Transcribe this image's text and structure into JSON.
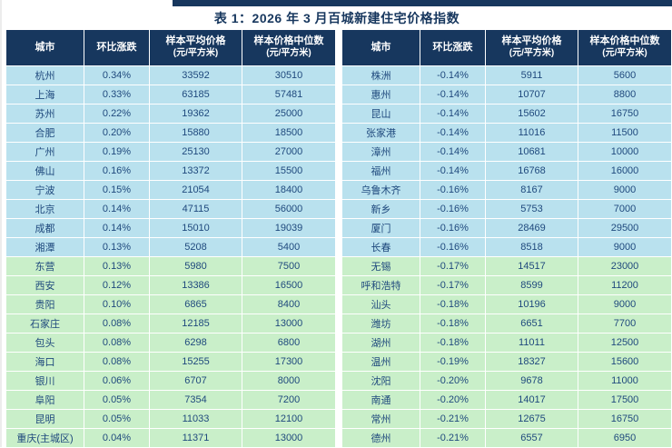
{
  "title": "表 1：2026 年 3 月百城新建住宅价格指数",
  "colors": {
    "header_bg": "#17375E",
    "header_text": "#FFFFFF",
    "row_blue": "#B9E1EE",
    "row_green": "#C9EFC9",
    "cell_text": "#1F497D",
    "title_text": "#17375E"
  },
  "columns": [
    {
      "label": "城市",
      "sub": ""
    },
    {
      "label": "环比涨跌",
      "sub": ""
    },
    {
      "label": "样本平均价格",
      "sub": "(元/平方米)"
    },
    {
      "label": "样本价格中位数",
      "sub": "(元/平方米)"
    }
  ],
  "left_table": {
    "rows": [
      {
        "city": "杭州",
        "change": "0.34%",
        "avg": "33592",
        "median": "30510",
        "group": "blue"
      },
      {
        "city": "上海",
        "change": "0.33%",
        "avg": "63185",
        "median": "57481",
        "group": "blue"
      },
      {
        "city": "苏州",
        "change": "0.22%",
        "avg": "19362",
        "median": "25000",
        "group": "blue"
      },
      {
        "city": "合肥",
        "change": "0.20%",
        "avg": "15880",
        "median": "18500",
        "group": "blue"
      },
      {
        "city": "广州",
        "change": "0.19%",
        "avg": "25130",
        "median": "27000",
        "group": "blue"
      },
      {
        "city": "佛山",
        "change": "0.16%",
        "avg": "13372",
        "median": "15500",
        "group": "blue"
      },
      {
        "city": "宁波",
        "change": "0.15%",
        "avg": "21054",
        "median": "18400",
        "group": "blue"
      },
      {
        "city": "北京",
        "change": "0.14%",
        "avg": "47115",
        "median": "56000",
        "group": "blue"
      },
      {
        "city": "成都",
        "change": "0.14%",
        "avg": "15010",
        "median": "19039",
        "group": "blue"
      },
      {
        "city": "湘潭",
        "change": "0.13%",
        "avg": "5208",
        "median": "5400",
        "group": "blue"
      },
      {
        "city": "东营",
        "change": "0.13%",
        "avg": "5980",
        "median": "7500",
        "group": "green"
      },
      {
        "city": "西安",
        "change": "0.12%",
        "avg": "13386",
        "median": "16500",
        "group": "green"
      },
      {
        "city": "贵阳",
        "change": "0.10%",
        "avg": "6865",
        "median": "8400",
        "group": "green"
      },
      {
        "city": "石家庄",
        "change": "0.08%",
        "avg": "12185",
        "median": "13000",
        "group": "green"
      },
      {
        "city": "包头",
        "change": "0.08%",
        "avg": "6298",
        "median": "6800",
        "group": "green"
      },
      {
        "city": "海口",
        "change": "0.08%",
        "avg": "15255",
        "median": "17300",
        "group": "green"
      },
      {
        "city": "银川",
        "change": "0.06%",
        "avg": "6707",
        "median": "8000",
        "group": "green"
      },
      {
        "city": "阜阳",
        "change": "0.05%",
        "avg": "7354",
        "median": "7200",
        "group": "green"
      },
      {
        "city": "昆明",
        "change": "0.05%",
        "avg": "11033",
        "median": "12100",
        "group": "green"
      },
      {
        "city": "重庆(主城区)",
        "change": "0.04%",
        "avg": "11371",
        "median": "13000",
        "group": "green"
      }
    ]
  },
  "right_table": {
    "rows": [
      {
        "city": "株洲",
        "change": "-0.14%",
        "avg": "5911",
        "median": "5600",
        "group": "blue"
      },
      {
        "city": "惠州",
        "change": "-0.14%",
        "avg": "10707",
        "median": "8800",
        "group": "blue"
      },
      {
        "city": "昆山",
        "change": "-0.14%",
        "avg": "15602",
        "median": "16750",
        "group": "blue"
      },
      {
        "city": "张家港",
        "change": "-0.14%",
        "avg": "11016",
        "median": "11500",
        "group": "blue"
      },
      {
        "city": "漳州",
        "change": "-0.14%",
        "avg": "10681",
        "median": "10000",
        "group": "blue"
      },
      {
        "city": "福州",
        "change": "-0.14%",
        "avg": "16768",
        "median": "16000",
        "group": "blue"
      },
      {
        "city": "乌鲁木齐",
        "change": "-0.16%",
        "avg": "8167",
        "median": "9000",
        "group": "blue"
      },
      {
        "city": "新乡",
        "change": "-0.16%",
        "avg": "5753",
        "median": "7000",
        "group": "blue"
      },
      {
        "city": "厦门",
        "change": "-0.16%",
        "avg": "28469",
        "median": "29500",
        "group": "blue"
      },
      {
        "city": "长春",
        "change": "-0.16%",
        "avg": "8518",
        "median": "9000",
        "group": "blue"
      },
      {
        "city": "无锡",
        "change": "-0.17%",
        "avg": "14517",
        "median": "23000",
        "group": "green"
      },
      {
        "city": "呼和浩特",
        "change": "-0.17%",
        "avg": "8599",
        "median": "11200",
        "group": "green"
      },
      {
        "city": "汕头",
        "change": "-0.18%",
        "avg": "10196",
        "median": "9000",
        "group": "green"
      },
      {
        "city": "潍坊",
        "change": "-0.18%",
        "avg": "6651",
        "median": "7700",
        "group": "green"
      },
      {
        "city": "湖州",
        "change": "-0.18%",
        "avg": "11011",
        "median": "12500",
        "group": "green"
      },
      {
        "city": "温州",
        "change": "-0.19%",
        "avg": "18327",
        "median": "15600",
        "group": "green"
      },
      {
        "city": "沈阳",
        "change": "-0.20%",
        "avg": "9678",
        "median": "11000",
        "group": "green"
      },
      {
        "city": "南通",
        "change": "-0.20%",
        "avg": "14017",
        "median": "17500",
        "group": "green"
      },
      {
        "city": "常州",
        "change": "-0.21%",
        "avg": "12675",
        "median": "16750",
        "group": "green"
      },
      {
        "city": "德州",
        "change": "-0.21%",
        "avg": "6557",
        "median": "6950",
        "group": "green"
      }
    ]
  }
}
